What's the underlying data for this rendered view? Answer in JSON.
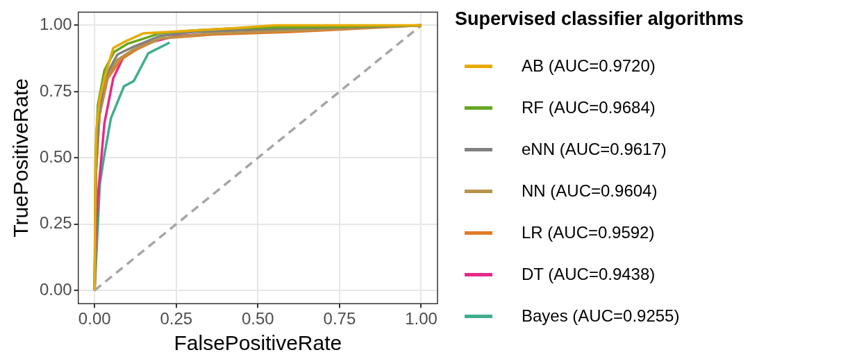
{
  "chart_data": {
    "type": "line",
    "xlabel": "FalsePositiveRate",
    "ylabel": "TruePositiveRate",
    "legend_title": "Supervised classifier algorithms",
    "legend": "right",
    "grid": true,
    "marker": "none",
    "xlim": [
      -0.05,
      1.05
    ],
    "ylim": [
      -0.05,
      1.05
    ],
    "xticks": [
      {
        "value": 0,
        "label": "0.00"
      },
      {
        "value": 0.25,
        "label": "0.25"
      },
      {
        "value": 0.5,
        "label": "0.50"
      },
      {
        "value": 0.75,
        "label": "0.75"
      },
      {
        "value": 1,
        "label": "1.00"
      }
    ],
    "yticks": [
      {
        "value": 0,
        "label": "0.00"
      },
      {
        "value": 0.25,
        "label": "0.25"
      },
      {
        "value": 0.5,
        "label": "0.50"
      },
      {
        "value": 0.75,
        "label": "0.75"
      },
      {
        "value": 1,
        "label": "1.00"
      }
    ],
    "series": [
      {
        "name": "AB (AUC=0.9720)",
        "color": "#e6ab02",
        "x": [
          0,
          0.002,
          0.005,
          0.015,
          0.03,
          0.057,
          0.095,
          0.15,
          0.3,
          0.44,
          0.55,
          1
        ],
        "values": [
          0,
          0.4,
          0.6,
          0.72,
          0.8,
          0.914,
          0.94,
          0.97,
          0.98,
          0.99,
          1,
          1
        ]
      },
      {
        "name": "RF (AUC=0.9684)",
        "color": "#66a61e",
        "x": [
          0,
          0.003,
          0.01,
          0.03,
          0.06,
          0.1,
          0.15,
          0.2,
          0.3,
          0.45,
          0.75,
          1
        ],
        "values": [
          0,
          0.5,
          0.7,
          0.83,
          0.9,
          0.93,
          0.95,
          0.97,
          0.98,
          0.99,
          0.995,
          1
        ]
      },
      {
        "name": "eNN (AUC=0.9617)",
        "color": "#808080",
        "x": [
          0,
          0.004,
          0.012,
          0.03,
          0.07,
          0.12,
          0.2,
          0.3,
          0.5,
          1
        ],
        "values": [
          0,
          0.45,
          0.66,
          0.8,
          0.89,
          0.92,
          0.96,
          0.975,
          0.985,
          1
        ]
      },
      {
        "name": "NN (AUC=0.9604)",
        "color": "#b8924a",
        "x": [
          0,
          0.004,
          0.015,
          0.035,
          0.07,
          0.12,
          0.2,
          0.35,
          0.6,
          1
        ],
        "values": [
          0,
          0.45,
          0.66,
          0.8,
          0.87,
          0.91,
          0.95,
          0.97,
          0.98,
          1
        ]
      },
      {
        "name": "LR (AUC=0.9592)",
        "color": "#e07b28",
        "x": [
          0,
          0.004,
          0.015,
          0.04,
          0.08,
          0.13,
          0.2,
          0.36,
          0.6,
          1
        ],
        "values": [
          0,
          0.44,
          0.66,
          0.8,
          0.87,
          0.91,
          0.95,
          0.965,
          0.975,
          1
        ]
      },
      {
        "name": "DT (AUC=0.9438)",
        "color": "#e7298a",
        "x": [
          0,
          0.005,
          0.012,
          0.03,
          0.057,
          0.09,
          0.15,
          0.25,
          0.55,
          1
        ],
        "values": [
          0,
          0.24,
          0.38,
          0.63,
          0.8,
          0.885,
          0.93,
          0.96,
          0.985,
          1
        ]
      },
      {
        "name": "Bayes (AUC=0.9255)",
        "color": "#3fae8c",
        "x": [
          0,
          0.016,
          0.027,
          0.05,
          0.09,
          0.12,
          0.164,
          0.23
        ],
        "values": [
          0,
          0.4,
          0.49,
          0.65,
          0.77,
          0.79,
          0.894,
          0.935
        ]
      },
      {
        "color": "#a6a6a6",
        "line_style": "dashed",
        "x": [
          0,
          1
        ],
        "values": [
          0,
          1
        ]
      }
    ]
  }
}
